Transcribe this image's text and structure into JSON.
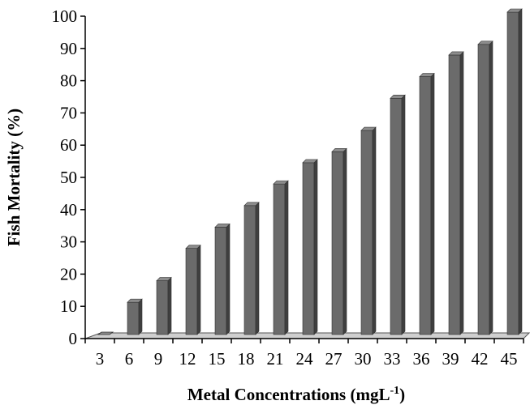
{
  "chart_data": {
    "type": "bar",
    "style": "3d-column",
    "categories": [
      "3",
      "6",
      "9",
      "12",
      "15",
      "18",
      "21",
      "24",
      "27",
      "30",
      "33",
      "36",
      "39",
      "42",
      "45"
    ],
    "series": [
      {
        "values": [
          0,
          10,
          16.7,
          26.7,
          33.3,
          40,
          46.7,
          53.3,
          56.7,
          63.3,
          73.3,
          80,
          86.7,
          90,
          100
        ]
      }
    ],
    "ylabel": "Fish Mortality (%)",
    "xlabel": {
      "main": "Metal Concentrations (mgL",
      "sup": "-1",
      "close": ")"
    },
    "ylim": [
      0,
      100
    ],
    "yticks": [
      "0",
      "10",
      "20",
      "30",
      "40",
      "50",
      "60",
      "70",
      "80",
      "90",
      "100"
    ],
    "grid": false,
    "legend": "none",
    "colors": {
      "bar_front": "#6b6b6b",
      "bar_side": "#3f3f3f",
      "bar_top": "#8c8c8c",
      "floor": "#cfcfcf"
    }
  }
}
